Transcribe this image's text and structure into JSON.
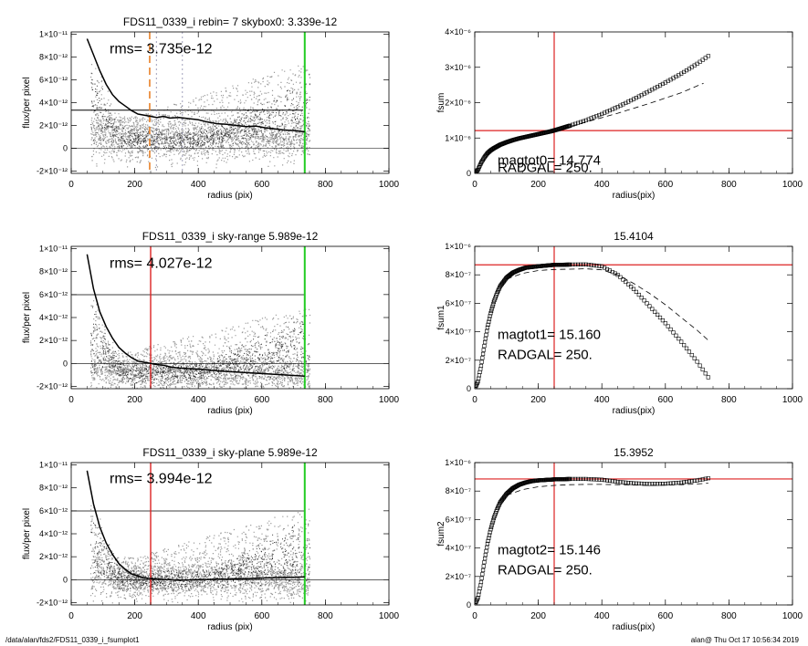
{
  "footer": {
    "path": "/data/alan/fds2/FDS11_0339_i_fsumplot1",
    "stamp": "alan@  Thu Oct 17 10:56:34 2019"
  },
  "chart_data": [
    {
      "id": "p1",
      "type": "scatter",
      "title": "FDS11_0339_i rebin= 7    skybox0:  3.339e-12",
      "xlabel": "radius (pix)",
      "ylabel": "flux/per pixel",
      "xlim": [
        0,
        1000
      ],
      "ylim": [
        -2.2e-12,
        1.02e-11
      ],
      "xticks": [
        0,
        200,
        400,
        600,
        800,
        1000
      ],
      "xticklabels": [
        "0",
        "200",
        "400",
        "600",
        "800",
        "1000"
      ],
      "yticks": [
        -2e-12,
        0,
        2e-12,
        4e-12,
        6e-12,
        8e-12,
        1e-11
      ],
      "yticklabels": [
        "-2×10⁻¹²",
        "0",
        "2×10⁻¹²",
        "4×10⁻¹²",
        "6×10⁻¹²",
        "8×10⁻¹²",
        "1×10⁻¹¹"
      ],
      "annotations": [
        "rms= 3.735e-12"
      ],
      "hlines": [
        {
          "y": 3.339e-12,
          "color": "#000000",
          "width": 1,
          "x_range": [
            0,
            730
          ]
        },
        {
          "y": 0,
          "color": "#000000",
          "width": 0.6,
          "x_range": [
            0,
            1000
          ]
        }
      ],
      "vlines": [
        {
          "x": 247,
          "color": "#e8822a",
          "dash": "8,5",
          "width": 1.6
        },
        {
          "x": 268,
          "color": "#8888aa",
          "dash": "2,3",
          "width": 0.8
        },
        {
          "x": 350,
          "color": "#8888aa",
          "dash": "2,3",
          "width": 0.8
        },
        {
          "x": 735,
          "color": "#22cc22",
          "width": 2
        }
      ],
      "series": [
        {
          "kind": "profile",
          "x": [
            50,
            70,
            90,
            110,
            130,
            150,
            170,
            190,
            210,
            230,
            250,
            270,
            290,
            310,
            340,
            370,
            400,
            430,
            460,
            490,
            520,
            550,
            580,
            610,
            640,
            670,
            700,
            735
          ],
          "y": [
            9.6e-12,
            8.2e-12,
            6.8e-12,
            5.6e-12,
            4.7e-12,
            4.1e-12,
            3.7e-12,
            3.3e-12,
            3e-12,
            2.9e-12,
            2.8e-12,
            2.7e-12,
            2.8e-12,
            2.65e-12,
            2.7e-12,
            2.6e-12,
            2.5e-12,
            2.3e-12,
            2.15e-12,
            2.1e-12,
            2e-12,
            1.9e-12,
            1.95e-12,
            1.8e-12,
            1.7e-12,
            1.6e-12,
            1.55e-12,
            1.45e-12
          ]
        }
      ],
      "scatter_model": {
        "base_center": 8e-13,
        "base_spread": 1.8e-12,
        "upper_slope": 9e-15,
        "noise_seed": 11
      }
    },
    {
      "id": "p2",
      "type": "line",
      "title": "",
      "xlabel": "radius(pix)",
      "ylabel": "fsum",
      "xlim": [
        0,
        1000
      ],
      "ylim": [
        0,
        4e-06
      ],
      "xticks": [
        0,
        200,
        400,
        600,
        800,
        1000
      ],
      "xticklabels": [
        "0",
        "200",
        "400",
        "600",
        "800",
        "1000"
      ],
      "yticks": [
        0,
        1e-06,
        2e-06,
        3e-06,
        4e-06
      ],
      "yticklabels": [
        "0",
        "1×10⁻⁶",
        "2×10⁻⁶",
        "3×10⁻⁶",
        "4×10⁻⁶"
      ],
      "annotations": [
        "magtot0=  14.774",
        "RADGAL=    250."
      ],
      "hlines": [
        {
          "y": 1.21e-06,
          "color": "#dd2222",
          "width": 1.2,
          "x_range": [
            0,
            1000
          ]
        }
      ],
      "vlines": [
        {
          "x": 250,
          "color": "#dd2222",
          "width": 1.2
        }
      ],
      "series": [
        {
          "kind": "markers",
          "x": [
            0,
            10,
            20,
            30,
            40,
            50,
            60,
            70,
            80,
            100,
            120,
            140,
            160,
            180,
            200,
            220,
            240,
            260,
            300,
            350,
            400,
            450,
            500,
            550,
            600,
            650,
            700,
            735
          ],
          "y": [
            0,
            1e-07,
            3e-07,
            4.5e-07,
            5.7e-07,
            6.5e-07,
            7.1e-07,
            7.6e-07,
            8.1e-07,
            8.8e-07,
            9.4e-07,
            9.9e-07,
            1.03e-06,
            1.07e-06,
            1.11e-06,
            1.15e-06,
            1.19e-06,
            1.24e-06,
            1.35e-06,
            1.5e-06,
            1.68e-06,
            1.88e-06,
            2.1e-06,
            2.33e-06,
            2.57e-06,
            2.82e-06,
            3.1e-06,
            3.32e-06
          ]
        },
        {
          "kind": "dashed",
          "x": [
            250,
            350,
            450,
            550,
            650,
            720
          ],
          "y": [
            1.2e-06,
            1.45e-06,
            1.7e-06,
            1.98e-06,
            2.28e-06,
            2.55e-06
          ]
        }
      ]
    },
    {
      "id": "p3",
      "type": "scatter",
      "title": "FDS11_0339_i sky-range  5.989e-12",
      "xlabel": "radius (pix)",
      "ylabel": "flux/per pixel",
      "xlim": [
        0,
        1000
      ],
      "ylim": [
        -2.2e-12,
        1.02e-11
      ],
      "xticks": [
        0,
        200,
        400,
        600,
        800,
        1000
      ],
      "xticklabels": [
        "0",
        "200",
        "400",
        "600",
        "800",
        "1000"
      ],
      "yticks": [
        -2e-12,
        0,
        2e-12,
        4e-12,
        6e-12,
        8e-12,
        1e-11
      ],
      "yticklabels": [
        "-2×10⁻¹²",
        "0",
        "2×10⁻¹²",
        "4×10⁻¹²",
        "6×10⁻¹²",
        "8×10⁻¹²",
        "1×10⁻¹¹"
      ],
      "annotations": [
        "rms= 4.027e-12"
      ],
      "hlines": [
        {
          "y": 5.989e-12,
          "color": "#000000",
          "width": 0.8,
          "x_range": [
            0,
            735
          ]
        },
        {
          "y": 0,
          "color": "#000000",
          "width": 0.6,
          "x_range": [
            0,
            1000
          ]
        }
      ],
      "vlines": [
        {
          "x": 250,
          "color": "#dd2222",
          "width": 1.4
        },
        {
          "x": 735,
          "color": "#22cc22",
          "width": 2
        }
      ],
      "series": [
        {
          "kind": "profile",
          "x": [
            50,
            70,
            90,
            110,
            130,
            150,
            170,
            190,
            210,
            230,
            250,
            270,
            290,
            310,
            340,
            370,
            400,
            430,
            460,
            490,
            520,
            550,
            580,
            610,
            640,
            670,
            700,
            735
          ],
          "y": [
            9.5e-12,
            6.5e-12,
            4.5e-12,
            3.2e-12,
            2.2e-12,
            1.4e-12,
            9e-13,
            5e-13,
            2e-13,
            1e-13,
            0.0,
            -1e-13,
            -1.5e-13,
            -3e-13,
            -4e-13,
            -4.5e-13,
            -5e-13,
            -5.5e-13,
            -6.5e-13,
            -7e-13,
            -7.5e-13,
            -8e-13,
            -8.5e-13,
            -9e-13,
            -9.5e-13,
            -1e-12,
            -1.05e-12,
            -1.1e-12
          ]
        }
      ],
      "scatter_model": {
        "base_center": -8e-13,
        "base_spread": 1.6e-12,
        "upper_slope": 7e-15,
        "noise_seed": 23
      }
    },
    {
      "id": "p4",
      "type": "line",
      "title": "15.4104",
      "xlabel": "radius(pix)",
      "ylabel": "fsum1",
      "xlim": [
        0,
        1000
      ],
      "ylim": [
        0,
        1e-06
      ],
      "xticks": [
        0,
        200,
        400,
        600,
        800,
        1000
      ],
      "xticklabels": [
        "0",
        "200",
        "400",
        "600",
        "800",
        "1000"
      ],
      "yticks": [
        0,
        2e-07,
        4e-07,
        6e-07,
        8e-07,
        1e-06
      ],
      "yticklabels": [
        "0",
        "2×10⁻⁷",
        "4×10⁻⁷",
        "6×10⁻⁷",
        "8×10⁻⁷",
        "1×10⁻⁶"
      ],
      "annotations": [
        "magtot1=  15.160",
        "RADGAL=    250."
      ],
      "hlines": [
        {
          "y": 8.7e-07,
          "color": "#dd2222",
          "width": 1.2,
          "x_range": [
            0,
            1000
          ]
        }
      ],
      "vlines": [
        {
          "x": 250,
          "color": "#dd2222",
          "width": 1.2
        }
      ],
      "series": [
        {
          "kind": "markers",
          "x": [
            0,
            10,
            20,
            30,
            40,
            50,
            60,
            70,
            80,
            100,
            120,
            140,
            160,
            180,
            200,
            250,
            300,
            350,
            400,
            450,
            500,
            550,
            600,
            650,
            700,
            735
          ],
          "y": [
            0,
            5e-08,
            1.6e-07,
            3e-07,
            4.3e-07,
            5.3e-07,
            6.1e-07,
            6.7e-07,
            7.2e-07,
            7.8e-07,
            8.15e-07,
            8.35e-07,
            8.5e-07,
            8.55e-07,
            8.6e-07,
            8.7e-07,
            8.72e-07,
            8.73e-07,
            8.6e-07,
            8e-07,
            7e-07,
            5.8e-07,
            4.6e-07,
            3.3e-07,
            1.9e-07,
            8e-08
          ]
        },
        {
          "kind": "dashed",
          "x": [
            100,
            150,
            200,
            250,
            300,
            350,
            400,
            450,
            500,
            550,
            600,
            650,
            700,
            735
          ],
          "y": [
            7.7e-07,
            8.1e-07,
            8.3e-07,
            8.38e-07,
            8.4e-07,
            8.42e-07,
            8.35e-07,
            8e-07,
            7.4e-07,
            6.7e-07,
            5.9e-07,
            5e-07,
            4.1e-07,
            3.4e-07
          ]
        }
      ]
    },
    {
      "id": "p5",
      "type": "scatter",
      "title": "FDS11_0339_i sky-plane 5.989e-12",
      "xlabel": "radius (pix)",
      "ylabel": "flux/per pixel",
      "xlim": [
        0,
        1000
      ],
      "ylim": [
        -2.2e-12,
        1.02e-11
      ],
      "xticks": [
        0,
        200,
        400,
        600,
        800,
        1000
      ],
      "xticklabels": [
        "0",
        "200",
        "400",
        "600",
        "800",
        "1000"
      ],
      "yticks": [
        -2e-12,
        0,
        2e-12,
        4e-12,
        6e-12,
        8e-12,
        1e-11
      ],
      "yticklabels": [
        "-2×10⁻¹²",
        "0",
        "2×10⁻¹²",
        "4×10⁻¹²",
        "6×10⁻¹²",
        "8×10⁻¹²",
        "1×10⁻¹¹"
      ],
      "annotations": [
        "rms= 3.994e-12"
      ],
      "hlines": [
        {
          "y": 5.989e-12,
          "color": "#000000",
          "width": 0.8,
          "x_range": [
            0,
            735
          ]
        },
        {
          "y": 0,
          "color": "#000000",
          "width": 0.6,
          "x_range": [
            0,
            1000
          ]
        }
      ],
      "vlines": [
        {
          "x": 250,
          "color": "#dd2222",
          "width": 1.4
        },
        {
          "x": 735,
          "color": "#22cc22",
          "width": 2
        }
      ],
      "series": [
        {
          "kind": "profile",
          "x": [
            50,
            70,
            90,
            110,
            130,
            150,
            170,
            190,
            210,
            230,
            250,
            270,
            290,
            310,
            340,
            370,
            400,
            430,
            460,
            490,
            520,
            550,
            580,
            610,
            640,
            670,
            700,
            735
          ],
          "y": [
            9.5e-12,
            6.6e-12,
            4.6e-12,
            3.2e-12,
            2.2e-12,
            1.4e-12,
            9e-13,
            5e-13,
            3e-13,
            1.5e-13,
            1e-13,
            5e-14,
            2e-14,
            0.0,
            -5e-14,
            -2e-14,
            0.0,
            2e-14,
            5e-14,
            5e-14,
            8e-14,
            1e-13,
            1.2e-13,
            1.5e-13,
            1.8e-13,
            2e-13,
            2.2e-13,
            2.5e-13
          ]
        }
      ],
      "scatter_model": {
        "base_center": 0.0,
        "base_spread": 1.6e-12,
        "upper_slope": 8e-15,
        "noise_seed": 37
      }
    },
    {
      "id": "p6",
      "type": "line",
      "title": "15.3952",
      "xlabel": "radius(pix)",
      "ylabel": "fsum2",
      "xlim": [
        0,
        1000
      ],
      "ylim": [
        0,
        1e-06
      ],
      "xticks": [
        0,
        200,
        400,
        600,
        800,
        1000
      ],
      "xticklabels": [
        "0",
        "200",
        "400",
        "600",
        "800",
        "1000"
      ],
      "yticks": [
        0,
        2e-07,
        4e-07,
        6e-07,
        8e-07,
        1e-06
      ],
      "yticklabels": [
        "0",
        "2×10⁻⁷",
        "4×10⁻⁷",
        "6×10⁻⁷",
        "8×10⁻⁷",
        "1×10⁻⁶"
      ],
      "annotations": [
        "magtot2=  15.146",
        "RADGAL=    250."
      ],
      "hlines": [
        {
          "y": 8.85e-07,
          "color": "#dd2222",
          "width": 1.2,
          "x_range": [
            0,
            1000
          ]
        }
      ],
      "vlines": [
        {
          "x": 250,
          "color": "#dd2222",
          "width": 1.2
        }
      ],
      "series": [
        {
          "kind": "markers",
          "x": [
            0,
            10,
            20,
            30,
            40,
            50,
            60,
            70,
            80,
            100,
            120,
            140,
            160,
            180,
            200,
            250,
            300,
            350,
            400,
            450,
            500,
            550,
            600,
            650,
            700,
            735
          ],
          "y": [
            0,
            5e-08,
            1.6e-07,
            3e-07,
            4.3e-07,
            5.3e-07,
            6.1e-07,
            6.7e-07,
            7.2e-07,
            7.8e-07,
            8.2e-07,
            8.45e-07,
            8.6e-07,
            8.7e-07,
            8.75e-07,
            8.82e-07,
            8.85e-07,
            8.85e-07,
            8.8e-07,
            8.65e-07,
            8.55e-07,
            8.5e-07,
            8.52e-07,
            8.6e-07,
            8.75e-07,
            8.9e-07
          ]
        },
        {
          "kind": "dashed",
          "x": [
            100,
            150,
            200,
            250,
            300,
            350,
            400,
            450,
            500,
            550,
            600,
            650,
            700,
            735
          ],
          "y": [
            7.7e-07,
            8.1e-07,
            8.3e-07,
            8.4e-07,
            8.45e-07,
            8.47e-07,
            8.47e-07,
            8.45e-07,
            8.42e-07,
            8.4e-07,
            8.42e-07,
            8.45e-07,
            8.5e-07,
            8.55e-07
          ]
        }
      ]
    }
  ]
}
